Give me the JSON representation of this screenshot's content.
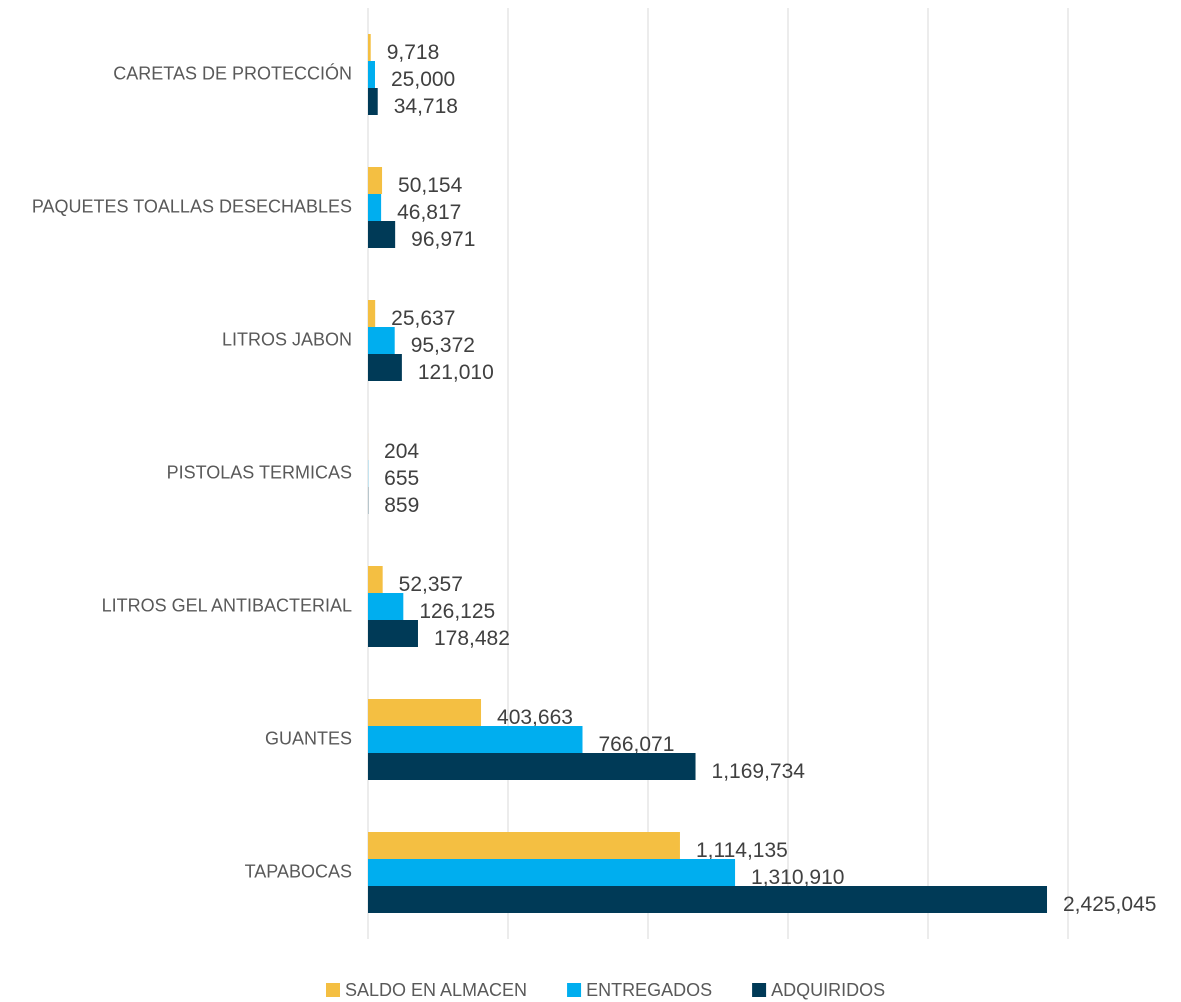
{
  "chart_data": {
    "type": "bar",
    "orientation": "horizontal",
    "categories": [
      "CARETAS DE PROTECCIÓN",
      "PAQUETES TOALLAS DESECHABLES",
      "LITROS JABON",
      "PISTOLAS TERMICAS",
      "LITROS GEL ANTIBACTERIAL",
      "GUANTES",
      "TAPABOCAS"
    ],
    "series": [
      {
        "name": "SALDO EN ALMACEN",
        "color": "#f4bf42",
        "values": [
          9718,
          50154,
          25637,
          204,
          52357,
          403663,
          1114135
        ],
        "value_labels": [
          "9,718",
          "50,154",
          "25,637",
          "204",
          "52,357",
          "403,663",
          "1,114,135"
        ]
      },
      {
        "name": "ENTREGADOS",
        "color": "#00aeef",
        "values": [
          25000,
          46817,
          95372,
          655,
          126125,
          766071,
          1310910
        ],
        "value_labels": [
          "25,000",
          "46,817",
          "95,372",
          "655",
          "126,125",
          "766,071",
          "1,310,910"
        ]
      },
      {
        "name": "ADQUIRIDOS",
        "color": "#003a57",
        "values": [
          34718,
          96971,
          121010,
          859,
          178482,
          1169734,
          2425045
        ],
        "value_labels": [
          "34,718",
          "96,971",
          "121,010",
          "859",
          "178,482",
          "1,169,734",
          "2,425,045"
        ]
      }
    ],
    "xlim": [
      0,
      2500000
    ],
    "xticks": [
      0,
      500000,
      1000000,
      1500000,
      2000000,
      2500000
    ],
    "grid": true,
    "legend": "bottom"
  }
}
